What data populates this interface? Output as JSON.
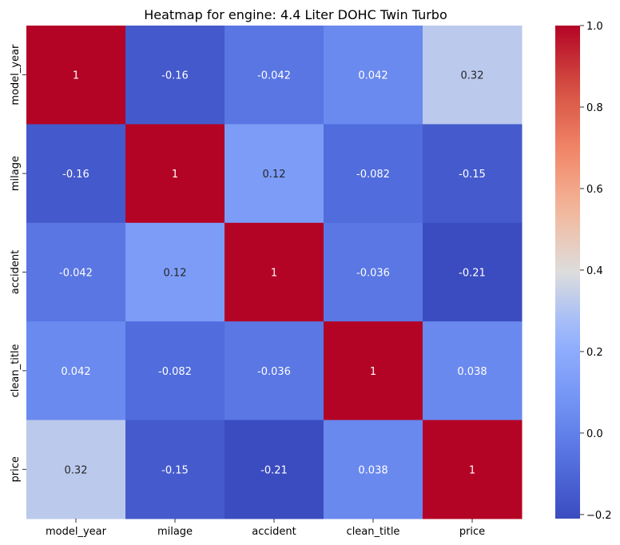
{
  "chart_data": {
    "type": "heatmap",
    "title": "Heatmap for engine: 4.4 Liter DOHC Twin Turbo",
    "x_categories": [
      "model_year",
      "milage",
      "accident",
      "clean_title",
      "price"
    ],
    "y_categories": [
      "model_year",
      "milage",
      "accident",
      "clean_title",
      "price"
    ],
    "values": [
      [
        1,
        -0.16,
        -0.042,
        0.042,
        0.32
      ],
      [
        -0.16,
        1,
        0.12,
        -0.082,
        -0.15
      ],
      [
        -0.042,
        0.12,
        1,
        -0.036,
        -0.21
      ],
      [
        0.042,
        -0.082,
        -0.036,
        1,
        0.038
      ],
      [
        0.32,
        -0.15,
        -0.21,
        0.038,
        1
      ]
    ],
    "cell_labels": [
      [
        "1",
        "-0.16",
        "-0.042",
        "0.042",
        "0.32"
      ],
      [
        "-0.16",
        "1",
        "0.12",
        "-0.082",
        "-0.15"
      ],
      [
        "-0.042",
        "0.12",
        "1",
        "-0.036",
        "-0.21"
      ],
      [
        "0.042",
        "-0.082",
        "-0.036",
        "1",
        "0.038"
      ],
      [
        "0.32",
        "-0.15",
        "-0.21",
        "0.038",
        "1"
      ]
    ],
    "colormap": "coolwarm",
    "colorbar": {
      "range": [
        -0.21,
        1
      ],
      "ticks": [
        -0.2,
        0.0,
        0.2,
        0.4,
        0.6,
        0.8,
        1.0
      ],
      "tick_labels": [
        "−0.2",
        "0.0",
        "0.2",
        "0.4",
        "0.6",
        "0.8",
        "1.0"
      ]
    },
    "xlabel": "",
    "ylabel": ""
  }
}
